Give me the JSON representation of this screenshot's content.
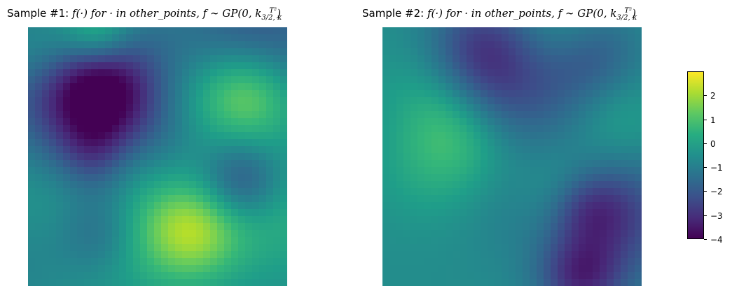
{
  "chart_data": [
    {
      "type": "heatmap",
      "title_prefix": "Sample #1: ",
      "title_math": "f(·) for · in other_points, f ∼ GP(0, k",
      "title_sub": "3/2, κ",
      "title_sup": "T²",
      "title_close": ")",
      "value_range": [
        -4,
        3
      ],
      "colormap": "viridis",
      "grid": false,
      "axes_visible": false
    },
    {
      "type": "heatmap",
      "title_prefix": "Sample #2: ",
      "title_math": "f(·) for · in other_points, f ∼ GP(0, k",
      "title_sub": "3/2, κ",
      "title_sup": "T²",
      "title_close": ")",
      "value_range": [
        -4,
        3
      ],
      "colormap": "viridis",
      "grid": false,
      "axes_visible": false
    }
  ],
  "colorbar": {
    "min": -4,
    "max": 3,
    "ticks": [
      "2",
      "1",
      "0",
      "−1",
      "−2",
      "−3",
      "−4"
    ],
    "tick_values": [
      2,
      1,
      0,
      -1,
      -2,
      -3,
      -4
    ],
    "colormap": "viridis"
  }
}
